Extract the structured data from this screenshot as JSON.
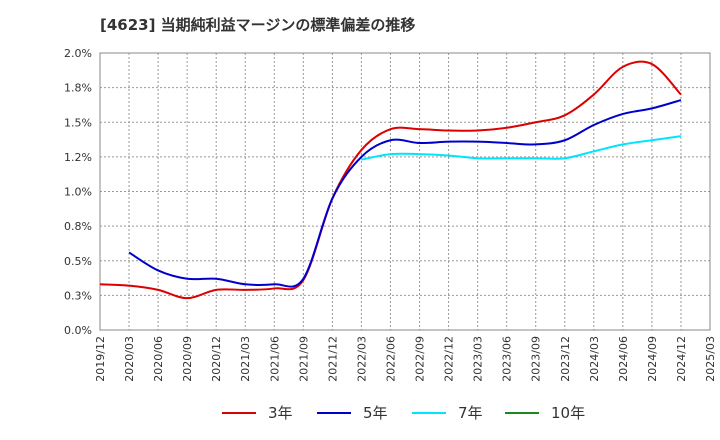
{
  "title": "[4623]  当期純利益マージンの標準偏差の推移",
  "chart_data": {
    "type": "line",
    "x": [
      "2019/12",
      "2020/03",
      "2020/06",
      "2020/09",
      "2020/12",
      "2021/03",
      "2021/06",
      "2021/09",
      "2021/12",
      "2022/03",
      "2022/06",
      "2022/09",
      "2022/12",
      "2023/03",
      "2023/06",
      "2023/09",
      "2023/12",
      "2024/03",
      "2024/06",
      "2024/09",
      "2024/12",
      "2025/03"
    ],
    "y_ticks": [
      "0.0%",
      "0.3%",
      "0.5%",
      "0.8%",
      "1.0%",
      "1.2%",
      "1.5%",
      "1.8%",
      "2.0%"
    ],
    "ylim": [
      0,
      2.0
    ],
    "grid": true,
    "legend": "bottom",
    "series": [
      {
        "name": "3年",
        "color": "#dd0000",
        "values": [
          0.33,
          0.32,
          0.29,
          0.23,
          0.29,
          0.29,
          0.3,
          0.36,
          0.95,
          1.3,
          1.45,
          1.45,
          1.44,
          1.44,
          1.46,
          1.5,
          1.55,
          1.7,
          1.9,
          1.92,
          1.7,
          null
        ]
      },
      {
        "name": "5年",
        "color": "#0000cc",
        "values": [
          null,
          0.56,
          0.43,
          0.37,
          0.37,
          0.33,
          0.33,
          0.37,
          0.95,
          1.25,
          1.37,
          1.35,
          1.36,
          1.36,
          1.35,
          1.34,
          1.37,
          1.48,
          1.56,
          1.6,
          1.66,
          null
        ]
      },
      {
        "name": "7年",
        "color": "#00e5ff",
        "values": [
          null,
          null,
          null,
          null,
          null,
          null,
          null,
          null,
          null,
          1.23,
          1.27,
          1.27,
          1.26,
          1.24,
          1.24,
          1.24,
          1.24,
          1.29,
          1.34,
          1.37,
          1.4,
          null
        ]
      },
      {
        "name": "10年",
        "color": "#1a8a1a",
        "values": [
          null,
          null,
          null,
          null,
          null,
          null,
          null,
          null,
          null,
          null,
          null,
          null,
          null,
          null,
          null,
          null,
          null,
          null,
          null,
          null,
          null,
          null
        ]
      }
    ]
  }
}
